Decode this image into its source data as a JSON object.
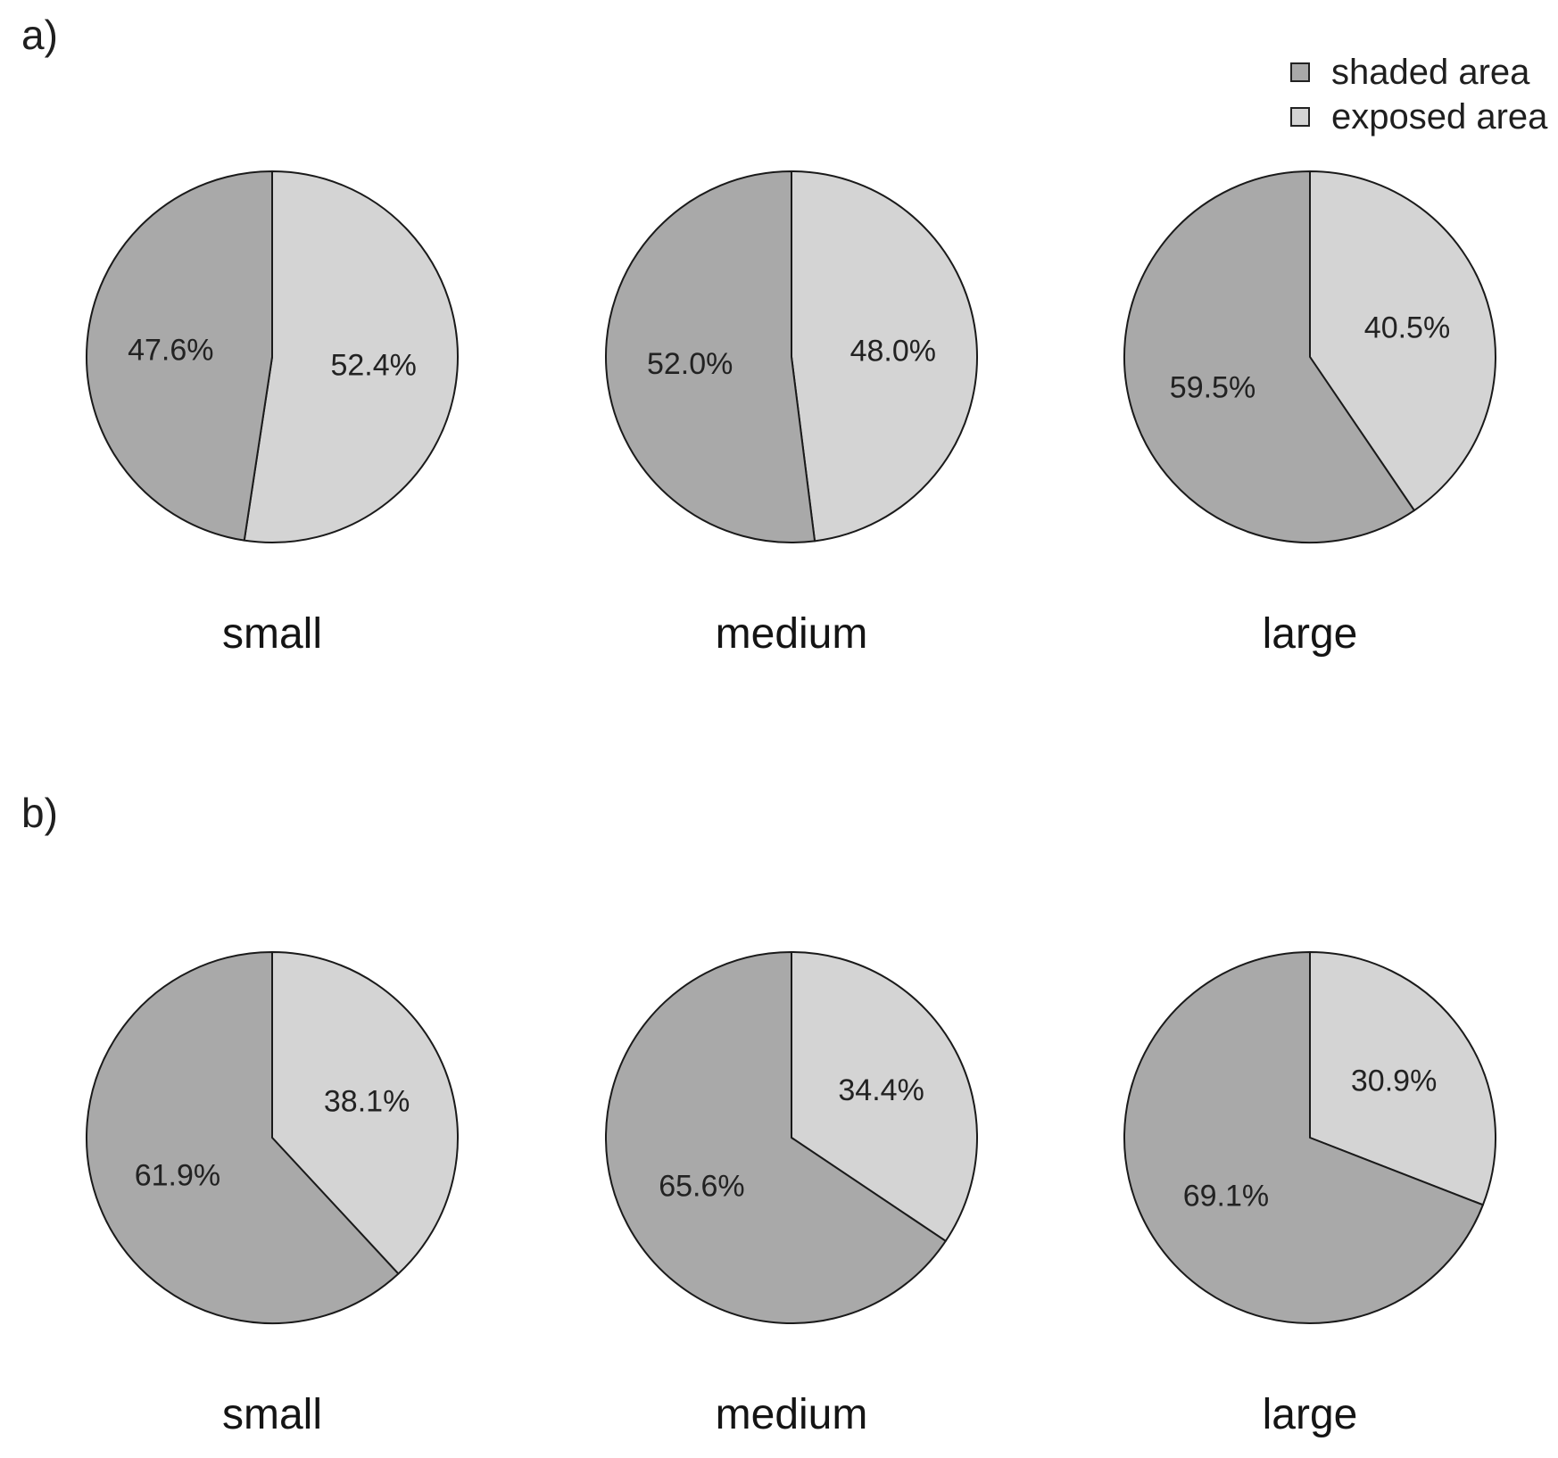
{
  "figure": {
    "panel_a_label": "a)",
    "panel_b_label": "b)"
  },
  "legend": {
    "position": "top-right",
    "items": [
      {
        "label": "shaded area",
        "swatch_color": "#a9a9a9"
      },
      {
        "label": "exposed area",
        "swatch_color": "#d4d4d4"
      }
    ]
  },
  "chart_data": [
    {
      "type": "pie",
      "panel_label": "a)",
      "categories": [
        "small",
        "medium",
        "large"
      ],
      "series": [
        {
          "name": "shaded area",
          "values": [
            47.6,
            52.0,
            59.5
          ]
        },
        {
          "name": "exposed area",
          "values": [
            52.4,
            48.0,
            40.5
          ]
        }
      ],
      "data_labels": [
        [
          "47.6%",
          "52.4%"
        ],
        [
          "52.0%",
          "48.0%"
        ],
        [
          "59.5%",
          "40.5%"
        ]
      ],
      "unit": "%",
      "start_angle": "12 o'clock, shaded drawn counterclockwise",
      "legend_position": "top-right",
      "colors": {
        "shaded area": "#a9a9a9",
        "exposed area": "#d4d4d4"
      }
    },
    {
      "type": "pie",
      "panel_label": "b)",
      "categories": [
        "small",
        "medium",
        "large"
      ],
      "series": [
        {
          "name": "shaded area",
          "values": [
            61.9,
            65.6,
            69.1
          ]
        },
        {
          "name": "exposed area",
          "values": [
            38.1,
            34.4,
            30.9
          ]
        }
      ],
      "data_labels": [
        [
          "61.9%",
          "38.1%"
        ],
        [
          "65.6%",
          "34.4%"
        ],
        [
          "69.1%",
          "30.9%"
        ]
      ],
      "unit": "%",
      "start_angle": "12 o'clock, shaded drawn counterclockwise",
      "legend_position": "none",
      "colors": {
        "shaded area": "#a9a9a9",
        "exposed area": "#d4d4d4"
      }
    }
  ]
}
